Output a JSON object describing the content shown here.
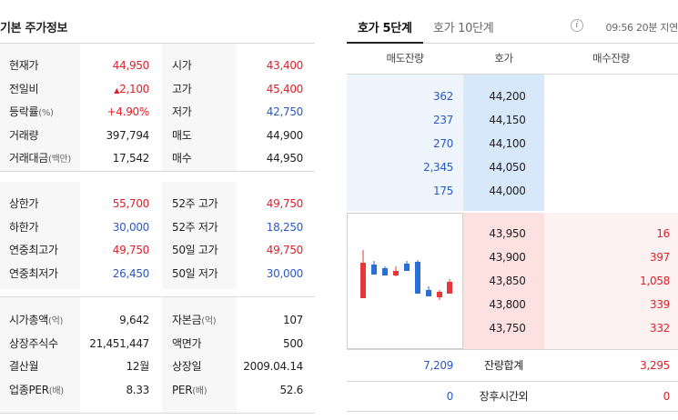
{
  "left": {
    "title": "기본 주가정보",
    "group1": [
      {
        "l1": "현재가",
        "l1u": "",
        "v1": "44,950",
        "c1": "red",
        "l2": "시가",
        "l2u": "",
        "v2": "43,400",
        "c2": "red"
      },
      {
        "l1": "전일비",
        "l1u": "",
        "v1": "2,100",
        "c1": "red",
        "arrow": "▲",
        "l2": "고가",
        "l2u": "",
        "v2": "45,400",
        "c2": "red"
      },
      {
        "l1": "등락률",
        "l1u": "(%)",
        "v1": "+4.90%",
        "c1": "red",
        "l2": "저가",
        "l2u": "",
        "v2": "42,750",
        "c2": "blue"
      },
      {
        "l1": "거래량",
        "l1u": "",
        "v1": "397,794",
        "c1": "",
        "l2": "매도",
        "l2u": "",
        "v2": "44,900",
        "c2": ""
      },
      {
        "l1": "거래대금",
        "l1u": "(백만)",
        "v1": "17,542",
        "c1": "",
        "l2": "매수",
        "l2u": "",
        "v2": "44,950",
        "c2": ""
      }
    ],
    "group2": [
      {
        "l1": "상한가",
        "l1u": "",
        "v1": "55,700",
        "c1": "red",
        "l2": "52주 고가",
        "l2u": "",
        "v2": "49,750",
        "c2": "red"
      },
      {
        "l1": "하한가",
        "l1u": "",
        "v1": "30,000",
        "c1": "blue",
        "l2": "52주 저가",
        "l2u": "",
        "v2": "18,250",
        "c2": "blue"
      },
      {
        "l1": "연중최고가",
        "l1u": "",
        "v1": "49,750",
        "c1": "red",
        "l2": "50일 고가",
        "l2u": "",
        "v2": "49,750",
        "c2": "red"
      },
      {
        "l1": "연중최저가",
        "l1u": "",
        "v1": "26,450",
        "c1": "blue",
        "l2": "50일 저가",
        "l2u": "",
        "v2": "30,000",
        "c2": "blue"
      }
    ],
    "group3": [
      {
        "l1": "시가총액",
        "l1u": "(억)",
        "v1": "9,642",
        "c1": "",
        "l2": "자본금",
        "l2u": "(억)",
        "v2": "107",
        "c2": ""
      },
      {
        "l1": "상장주식수",
        "l1u": "",
        "v1": "21,451,447",
        "c1": "",
        "l2": "액면가",
        "l2u": "",
        "v2": "500",
        "c2": ""
      },
      {
        "l1": "결산월",
        "l1u": "",
        "v1": "12월",
        "c1": "",
        "l2": "상장일",
        "l2u": "",
        "v2": "2009.04.14",
        "c2": ""
      },
      {
        "l1": "업종PER",
        "l1u": "(배)",
        "v1": "8.33",
        "c1": "",
        "l2": "PER",
        "l2u": "(배)",
        "v2": "52.6",
        "c2": ""
      }
    ]
  },
  "right": {
    "tab5": "호가 5단계",
    "tab10": "호가 10단계",
    "info_icon": "i",
    "time": "09:56 20분 지연",
    "header": {
      "sell": "매도잔량",
      "price": "호가",
      "buy": "매수잔량"
    },
    "asks": [
      {
        "vol": "362",
        "price": "44,200"
      },
      {
        "vol": "237",
        "price": "44,150"
      },
      {
        "vol": "270",
        "price": "44,100"
      },
      {
        "vol": "2,345",
        "price": "44,050"
      },
      {
        "vol": "175",
        "price": "44,000"
      }
    ],
    "bids": [
      {
        "price": "43,950",
        "vol": "16"
      },
      {
        "price": "43,900",
        "vol": "397"
      },
      {
        "price": "43,850",
        "vol": "1,058"
      },
      {
        "price": "43,800",
        "vol": "339"
      },
      {
        "price": "43,750",
        "vol": "332"
      }
    ],
    "total": {
      "sell": "7,209",
      "label": "잔량합계",
      "buy": "3,295"
    },
    "after": {
      "sell": "0",
      "label": "장후시간외",
      "buy": "0"
    },
    "mini_chart": {
      "up_color": "#e8363e",
      "down_color": "#2a6fd6",
      "candles": [
        {
          "dir": "up"
        },
        {
          "dir": "down"
        },
        {
          "dir": "down"
        },
        {
          "dir": "up"
        },
        {
          "dir": "down"
        },
        {
          "dir": "down"
        },
        {
          "dir": "down"
        },
        {
          "dir": "up"
        },
        {
          "dir": "up"
        }
      ]
    }
  }
}
